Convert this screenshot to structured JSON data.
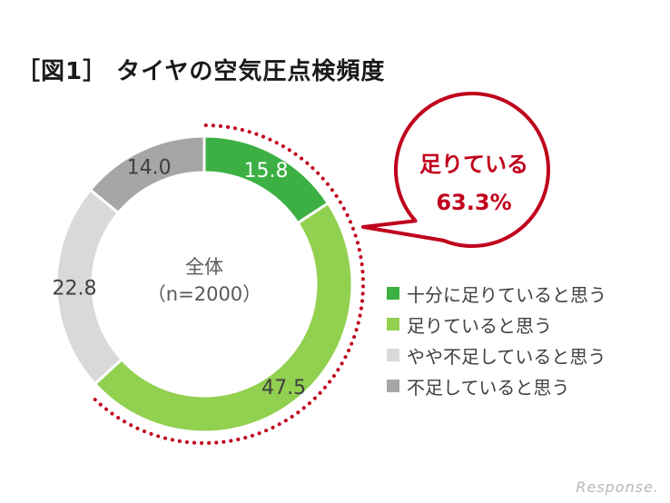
{
  "title": "［図1］ タイヤの空気圧点検頻度",
  "chart_data": {
    "type": "pie",
    "subtype": "donut",
    "title": "［図1］ タイヤの空気圧点検頻度",
    "center_label": [
      "全体",
      "（n=2000）"
    ],
    "slices": [
      {
        "name": "十分に足りていると思う",
        "value": 15.8,
        "label": "15.8",
        "color": "#3cb043",
        "label_color": "#ffffff"
      },
      {
        "name": "足りていると思う",
        "value": 47.5,
        "label": "47.5",
        "color": "#92d050",
        "label_color": "#404040"
      },
      {
        "name": "やや不足していると思う",
        "value": 22.8,
        "label": "22.8",
        "color": "#d9d9d9",
        "label_color": "#404040"
      },
      {
        "name": "不足していると思う",
        "value": 14.0,
        "label": "14.0",
        "color": "#a6a6a6",
        "label_color": "#404040"
      }
    ],
    "callout": {
      "line1": "足りている",
      "line2": "63.3%",
      "color": "#c0001c"
    },
    "legend_placement": "right"
  },
  "watermark": "Response."
}
